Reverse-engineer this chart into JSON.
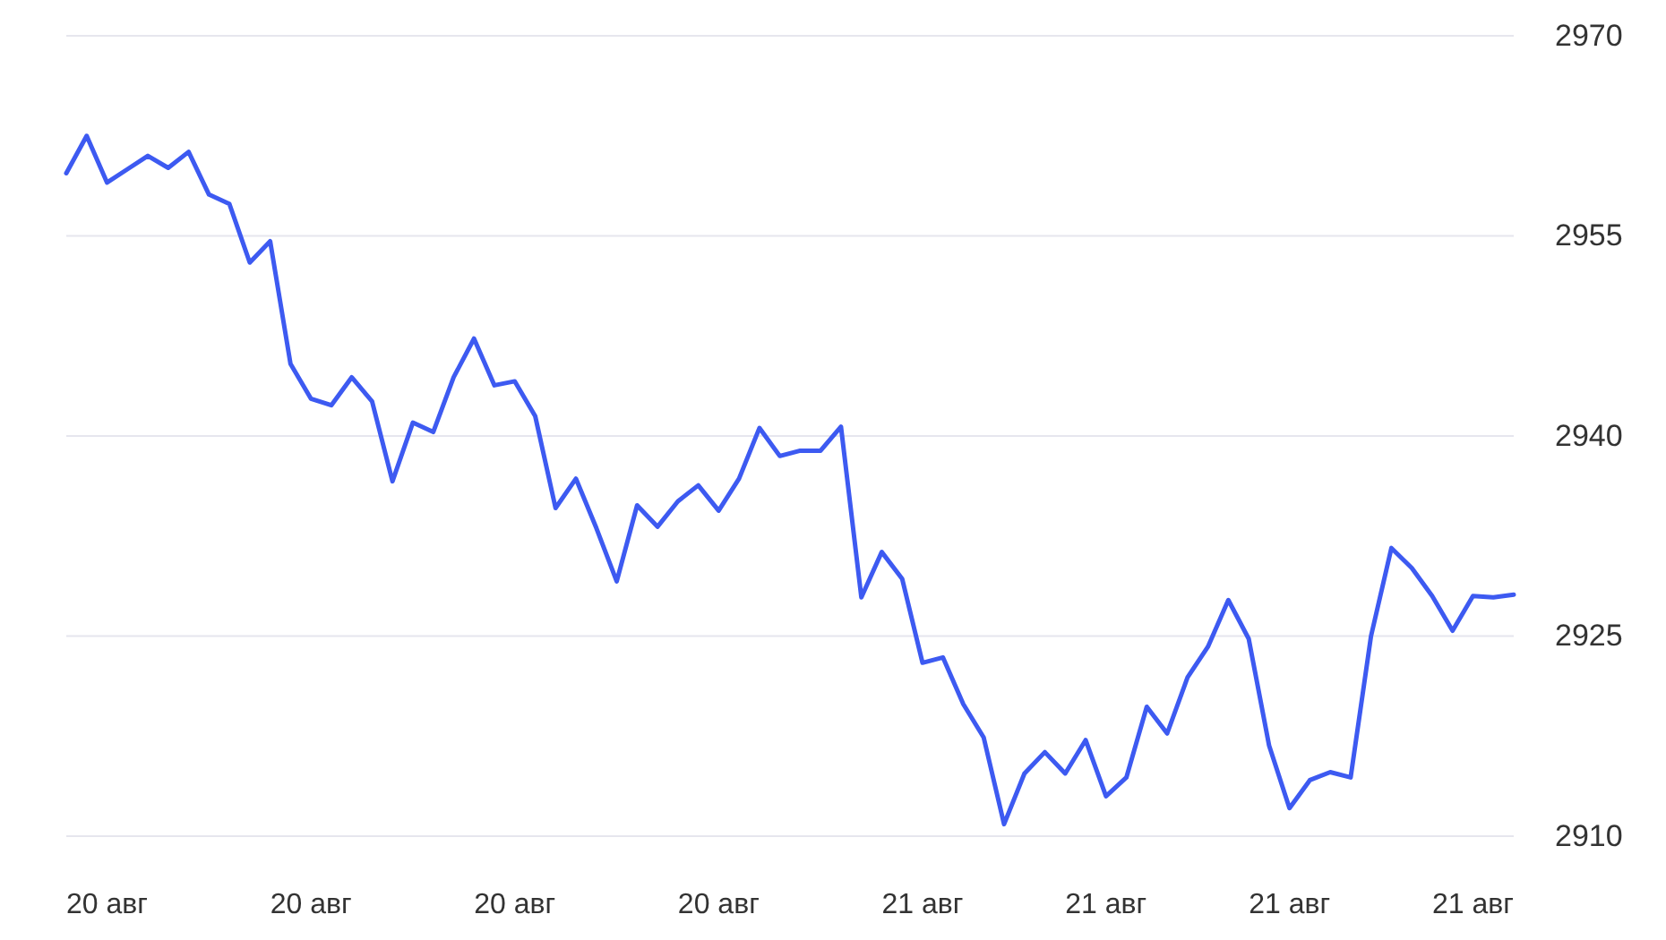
{
  "chart_data": {
    "type": "line",
    "categories": [
      null,
      null,
      "20 авг",
      null,
      null,
      null,
      null,
      null,
      null,
      null,
      null,
      null,
      "20 авг",
      null,
      null,
      null,
      null,
      null,
      null,
      null,
      null,
      null,
      "20 авг",
      null,
      null,
      null,
      null,
      null,
      null,
      null,
      null,
      null,
      "20 авг",
      null,
      null,
      null,
      null,
      null,
      null,
      null,
      null,
      null,
      "21 авг",
      null,
      null,
      null,
      null,
      null,
      null,
      null,
      null,
      "21 авг",
      null,
      null,
      null,
      null,
      null,
      null,
      null,
      null,
      "21 авг",
      null,
      null,
      null,
      null,
      null,
      null,
      null,
      null,
      "21 авг",
      null,
      null
    ],
    "series": [
      {
        "color": "#3d5af1",
        "values": [
          2959.7,
          2962.5,
          2959.0,
          2960.0,
          2961.0,
          2960.1,
          2961.3,
          2958.1,
          2957.4,
          2953.0,
          2954.6,
          2945.4,
          2942.8,
          2942.3,
          2944.4,
          2942.6,
          2936.6,
          2941.0,
          2940.3,
          2944.4,
          2947.3,
          2943.8,
          2944.1,
          2941.5,
          2934.6,
          2936.8,
          2933.1,
          2929.1,
          2934.8,
          2933.2,
          2935.1,
          2936.3,
          2934.4,
          2936.8,
          2940.6,
          2938.5,
          2938.9,
          2938.9,
          2940.7,
          2927.9,
          2931.3,
          2929.3,
          2923.0,
          2923.4,
          2919.9,
          2917.4,
          2910.9,
          2914.7,
          2916.3,
          2914.7,
          2917.2,
          2913.0,
          2914.4,
          2919.7,
          2917.7,
          2921.9,
          2924.2,
          2927.7,
          2924.8,
          2916.8,
          2912.1,
          2914.2,
          2914.8,
          2914.4,
          2925.0,
          2931.6,
          2930.1,
          2928.0,
          2925.4,
          2928.0,
          2927.9,
          2928.1
        ]
      }
    ],
    "ylim": [
      2910,
      2970
    ],
    "yticks": [
      2910,
      2925,
      2940,
      2955,
      2970
    ],
    "grid": "y",
    "marker": "none",
    "line_style": "solid"
  }
}
